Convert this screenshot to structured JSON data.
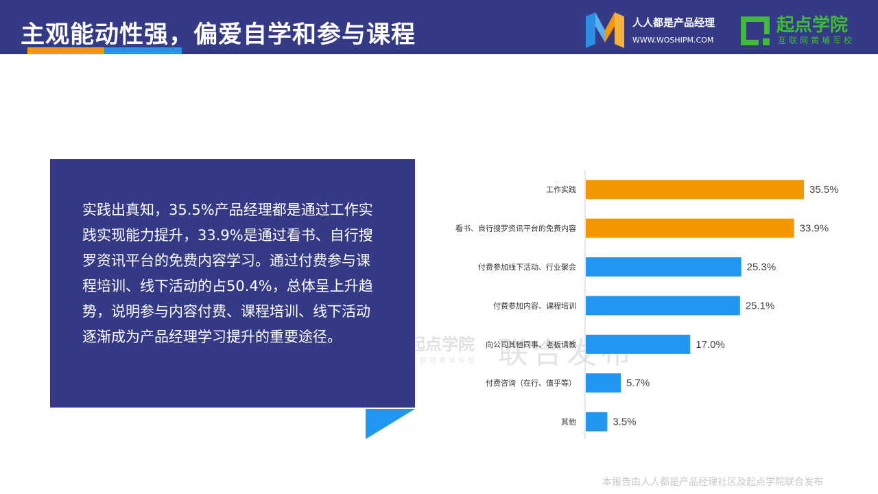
{
  "header": {
    "title": "主观能动性强，偏爱自学和参与课程",
    "logo1_name": "人人都是产品经理",
    "logo1_url": "WWW.WOSHIPM.COM",
    "logo2_name": "起点学院",
    "logo2_sub": "互联网黄埔军校"
  },
  "summary": "实践出真知，35.5%产品经理都是通过工作实践实现能力提升，33.9%是通过看书、自行搜罗资讯平台的免费内容学习。通过付费参与课程培训、线下活动的占50.4%，总体呈上升趋势，说明参与内容付费、课程培训、线下活动逐渐成为产品经理学习提升的重要途径。",
  "watermark": {
    "logo": "起点学院",
    "logo_sub": "互联网黄埔军校",
    "text": "联合发布"
  },
  "footer": "本报告由人人都是产品经理社区及起点学院联合发布",
  "colors": {
    "navy": "#353a86",
    "orange": "#f49800",
    "blue": "#2196f3",
    "green": "#3fba3a"
  },
  "chart_data": {
    "type": "bar",
    "orientation": "horizontal",
    "categories": [
      "工作实践",
      "看书、自行搜罗资讯平台的免费内容",
      "付费参加线下活动、行业聚会",
      "付费参加内容、课程培训",
      "向公司其他同事、老板请教",
      "付费咨询（在行、值乎等）",
      "其他"
    ],
    "values": [
      35.5,
      33.9,
      25.3,
      25.1,
      17.0,
      5.7,
      3.5
    ],
    "data_labels": [
      "35.5%",
      "33.9%",
      "25.3%",
      "25.1%",
      "17.0%",
      "5.7%",
      "3.5%"
    ],
    "bar_colors": [
      "#f49800",
      "#f49800",
      "#2196f3",
      "#2196f3",
      "#2196f3",
      "#2196f3",
      "#2196f3"
    ],
    "xlim": [
      0,
      40
    ],
    "grid": false,
    "legend": "none"
  }
}
